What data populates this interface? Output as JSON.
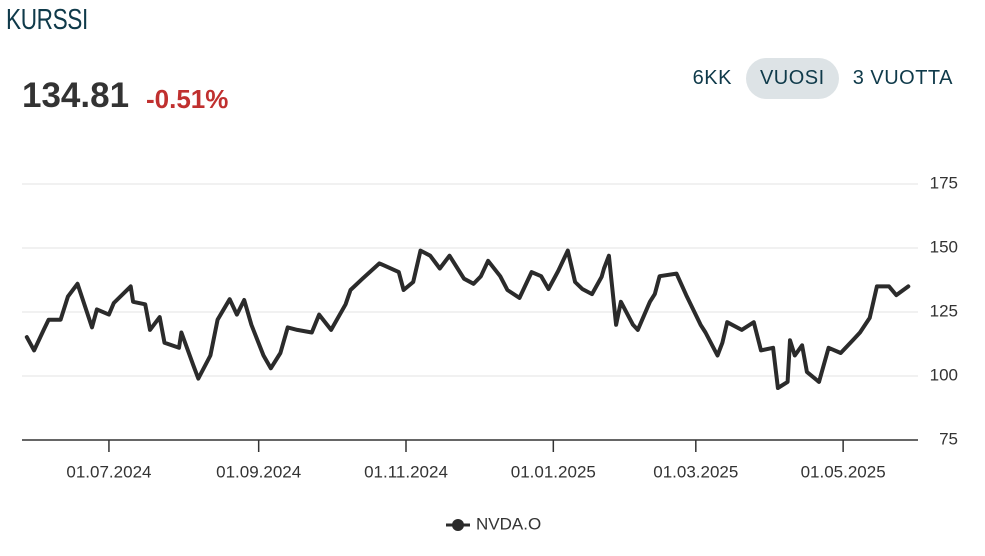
{
  "header": {
    "title": "KURSSI",
    "price": "134.81",
    "change": "-0.51%"
  },
  "ranges": [
    "6KK",
    "VUOSI",
    "3 VUOTTA"
  ],
  "selected_range": "VUOSI",
  "chart_data": {
    "type": "line",
    "x": [
      "2024-05-28",
      "2024-05-31",
      "2024-06-04",
      "2024-06-06",
      "2024-06-11",
      "2024-06-14",
      "2024-06-18",
      "2024-06-24",
      "2024-06-26",
      "2024-07-01",
      "2024-07-03",
      "2024-07-10",
      "2024-07-11",
      "2024-07-16",
      "2024-07-18",
      "2024-07-22",
      "2024-07-24",
      "2024-07-30",
      "2024-07-31",
      "2024-08-05",
      "2024-08-07",
      "2024-08-12",
      "2024-08-15",
      "2024-08-20",
      "2024-08-23",
      "2024-08-26",
      "2024-08-29",
      "2024-09-03",
      "2024-09-06",
      "2024-09-10",
      "2024-09-13",
      "2024-09-17",
      "2024-09-23",
      "2024-09-26",
      "2024-10-01",
      "2024-10-07",
      "2024-10-09",
      "2024-10-14",
      "2024-10-21",
      "2024-10-29",
      "2024-10-31",
      "2024-11-04",
      "2024-11-07",
      "2024-11-11",
      "2024-11-15",
      "2024-11-19",
      "2024-11-25",
      "2024-11-29",
      "2024-12-02",
      "2024-12-05",
      "2024-12-10",
      "2024-12-13",
      "2024-12-18",
      "2024-12-23",
      "2024-12-27",
      "2024-12-30",
      "2025-01-03",
      "2025-01-07",
      "2025-01-10",
      "2025-01-13",
      "2025-01-17",
      "2025-01-21",
      "2025-01-22",
      "2025-01-24",
      "2025-01-27",
      "2025-01-29",
      "2025-02-03",
      "2025-02-05",
      "2025-02-10",
      "2025-02-12",
      "2025-02-14",
      "2025-02-21",
      "2025-02-25",
      "2025-03-03",
      "2025-03-05",
      "2025-03-10",
      "2025-03-12",
      "2025-03-14",
      "2025-03-20",
      "2025-03-25",
      "2025-03-28",
      "2025-04-02",
      "2025-04-04",
      "2025-04-08",
      "2025-04-09",
      "2025-04-11",
      "2025-04-14",
      "2025-04-16",
      "2025-04-21",
      "2025-04-25",
      "2025-04-30",
      "2025-05-05",
      "2025-05-08",
      "2025-05-12",
      "2025-05-15",
      "2025-05-20",
      "2025-05-23",
      "2025-05-28"
    ],
    "series": [
      {
        "name": "NVDA.O",
        "color": "#2b2b2b",
        "values": [
          115.2,
          110,
          118,
          122,
          122,
          131,
          136,
          119,
          126,
          124,
          128.5,
          135,
          129,
          128,
          118,
          123,
          113,
          111,
          117,
          104,
          99,
          108,
          122,
          130,
          124,
          129.7,
          120,
          108,
          103,
          109,
          119,
          118,
          117,
          124,
          118,
          128,
          133.6,
          138,
          144,
          140.6,
          133.6,
          136.7,
          149,
          147,
          142,
          147,
          138,
          136,
          139,
          145,
          139,
          133.6,
          130.5,
          140.6,
          139,
          134,
          141,
          149,
          136.7,
          134,
          132,
          138.7,
          142,
          147,
          120,
          129,
          120,
          118,
          129,
          132,
          139,
          140,
          131.6,
          120,
          117,
          108,
          113,
          121,
          118,
          121,
          110,
          111,
          95.3,
          97.7,
          114,
          108,
          112,
          101.6,
          97.7,
          111,
          109,
          114,
          117,
          122.7,
          135,
          135,
          131.6,
          135
        ]
      }
    ],
    "xlim": [
      "2024-05-26",
      "2025-06-01"
    ],
    "xticks": [
      {
        "value": "2024-07-01",
        "label": "01.07.2024"
      },
      {
        "value": "2024-09-01",
        "label": "01.09.2024"
      },
      {
        "value": "2024-11-01",
        "label": "01.11.2024"
      },
      {
        "value": "2025-01-01",
        "label": "01.01.2025"
      },
      {
        "value": "2025-03-01",
        "label": "01.03.2025"
      },
      {
        "value": "2025-05-01",
        "label": "01.05.2025"
      }
    ],
    "ylim": [
      75,
      175
    ],
    "yticks": [
      75,
      100,
      125,
      150,
      175
    ],
    "grid": true,
    "legend": "bottom"
  }
}
